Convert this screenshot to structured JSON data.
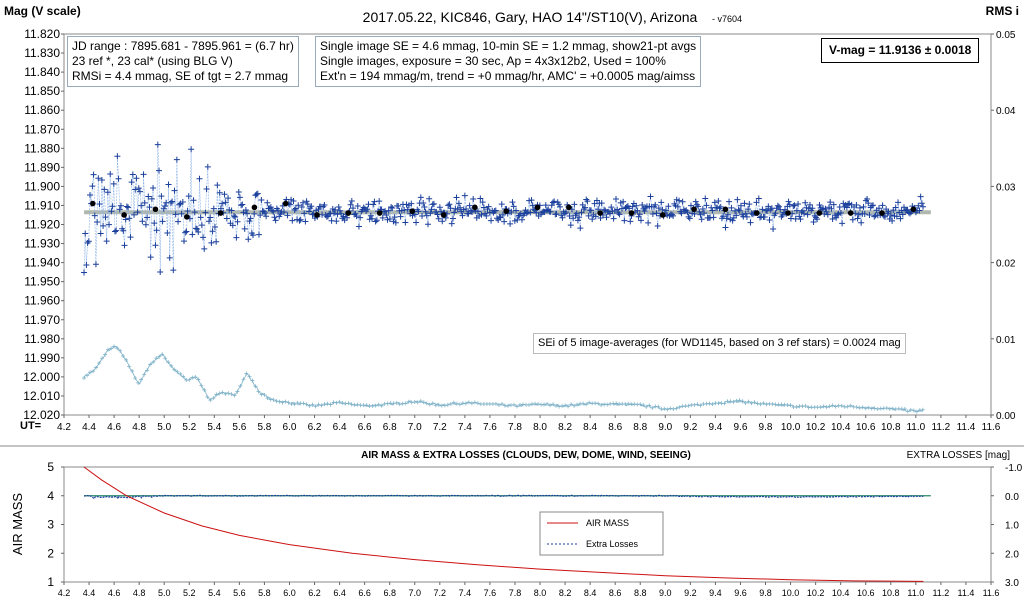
{
  "chart_data": [
    {
      "type": "scatter",
      "title": "2017.05.22,  KIC846,  Gary,  HAO 14\"/ST10(V),  Arizona",
      "version": "- v7604",
      "ylabel": "Mag (V scale)",
      "y2label": "RMS i",
      "xlabel": "UT=",
      "xlim": [
        4.2,
        11.6
      ],
      "ylim": [
        11.82,
        12.02
      ],
      "y_inverted": true,
      "y2lim": [
        0.0,
        0.05
      ],
      "x_ticks": [
        "4.2",
        "4.4",
        "4.6",
        "4.8",
        "5.0",
        "5.2",
        "5.4",
        "5.6",
        "5.8",
        "6.0",
        "6.2",
        "6.4",
        "6.6",
        "6.8",
        "7.0",
        "7.2",
        "7.4",
        "7.6",
        "7.8",
        "8.0",
        "8.2",
        "8.4",
        "8.6",
        "8.8",
        "9.0",
        "9.2",
        "9.4",
        "9.6",
        "9.8",
        "10.0",
        "10.2",
        "10.4",
        "10.6",
        "10.8",
        "11.0",
        "11.2",
        "11.4",
        "11.6"
      ],
      "y_ticks": [
        "11.820",
        "11.830",
        "11.840",
        "11.850",
        "11.860",
        "11.870",
        "11.880",
        "11.890",
        "11.900",
        "11.910",
        "11.920",
        "11.930",
        "11.940",
        "11.950",
        "11.960",
        "11.970",
        "11.980",
        "11.990",
        "12.000",
        "12.010",
        "12.020"
      ],
      "y2_ticks": [
        "0.05",
        "0.04",
        "0.03",
        "0.02",
        "0.01",
        "0.00"
      ],
      "info_left": [
        "JD range : 7895.681 - 7895.961 = (6.7 hr)",
        "23 ref *, 23 cal* (using BLG V)",
        "RMSi = 4.4 mmag, SE of tgt = 2.7 mmag"
      ],
      "info_mid": [
        "Single image SE = 4.6 mmag, 10-min SE = 1.2 mmag, show21-pt avgs",
        "Single images, exposure = 30 sec, Ap = 4x3x12b2, Used = 100%",
        "Ext'n = 194 mmag/m, trend = +0 mmag/hr, AMC' = +0.0005 mag/aimss"
      ],
      "vmag_label": "V-mag = 11.9136 ± 0.0018",
      "se_note": "SEi of 5 image-averages (for WD1145, based on 3 ref stars) = 0.0024 mag",
      "vmag_mean": 11.9136,
      "series": [
        {
          "name": "single images",
          "color": "#1a3f9c",
          "x_start": 4.36,
          "x_end": 11.06,
          "y_mean": 11.913,
          "y_scatter_early": 0.02,
          "y_scatter_late": 0.006
        },
        {
          "name": "21-pt averages",
          "color": "#000000",
          "x": [
            4.43,
            4.68,
            4.93,
            5.18,
            5.45,
            5.72,
            5.97,
            6.22,
            6.47,
            6.72,
            6.98,
            7.23,
            7.48,
            7.73,
            7.98,
            8.23,
            8.48,
            8.73,
            8.98,
            9.23,
            9.48,
            9.73,
            9.98,
            10.23,
            10.48,
            10.73,
            10.98
          ],
          "y": [
            11.909,
            11.915,
            11.912,
            11.916,
            11.914,
            11.911,
            11.909,
            11.915,
            11.914,
            11.914,
            11.913,
            11.915,
            11.911,
            11.913,
            11.911,
            11.911,
            11.914,
            11.914,
            11.915,
            11.912,
            11.912,
            11.914,
            11.914,
            11.914,
            11.914,
            11.914,
            11.912
          ]
        },
        {
          "name": "RMS i",
          "axis": "right",
          "color": "#7fb2c8",
          "x": [
            4.36,
            4.45,
            4.55,
            4.62,
            4.7,
            4.8,
            4.88,
            4.98,
            5.08,
            5.18,
            5.26,
            5.36,
            5.46,
            5.56,
            5.66,
            5.76,
            5.86,
            6.0,
            6.2,
            6.4,
            6.6,
            6.8,
            7.0,
            7.2,
            7.4,
            7.6,
            7.8,
            8.0,
            8.2,
            8.4,
            8.6,
            8.8,
            9.0,
            9.2,
            9.4,
            9.6,
            9.8,
            10.0,
            10.2,
            10.4,
            10.6,
            10.8,
            11.0,
            11.06
          ],
          "y": [
            0.005,
            0.006,
            0.0085,
            0.009,
            0.007,
            0.004,
            0.0065,
            0.008,
            0.006,
            0.0045,
            0.005,
            0.002,
            0.003,
            0.0025,
            0.0055,
            0.003,
            0.002,
            0.0016,
            0.0012,
            0.0016,
            0.0012,
            0.0014,
            0.0018,
            0.0013,
            0.0016,
            0.0014,
            0.0012,
            0.0014,
            0.0012,
            0.0015,
            0.0014,
            0.0013,
            0.0008,
            0.0012,
            0.0016,
            0.0018,
            0.0014,
            0.0012,
            0.001,
            0.0012,
            0.001,
            0.0008,
            0.0005,
            0.0006
          ]
        }
      ]
    },
    {
      "type": "line",
      "title": "AIR MASS & EXTRA LOSSES (CLOUDS, DEW, DOME, WIND, SEEING)",
      "ylabel": "AIR MASS",
      "y2label": "EXTRA LOSSES [mag]",
      "xlim": [
        4.2,
        11.6
      ],
      "ylim": [
        1,
        5
      ],
      "y2lim": [
        -1.0,
        3.0
      ],
      "y2_inverted": true,
      "x_ticks": [
        "4.2",
        "4.4",
        "4.6",
        "4.8",
        "5.0",
        "5.2",
        "5.4",
        "5.6",
        "5.8",
        "6.0",
        "6.2",
        "6.4",
        "6.6",
        "6.8",
        "7.0",
        "7.2",
        "7.4",
        "7.6",
        "7.8",
        "8.0",
        "8.2",
        "8.4",
        "8.6",
        "8.8",
        "9.0",
        "9.2",
        "9.4",
        "9.6",
        "9.8",
        "10.0",
        "10.2",
        "10.4",
        "10.6",
        "10.8",
        "11.0",
        "11.2",
        "11.4",
        "11.6"
      ],
      "y_ticks": [
        "5",
        "4",
        "3",
        "2",
        "1"
      ],
      "y2_ticks": [
        "-1.0",
        "0.0",
        "1.0",
        "2.0",
        "3.0"
      ],
      "legend": [
        "AIR MASS",
        "Extra Losses"
      ],
      "series": [
        {
          "name": "AIR MASS",
          "color": "#cc1111",
          "x": [
            4.36,
            4.5,
            4.7,
            5.0,
            5.3,
            5.6,
            6.0,
            6.5,
            7.0,
            7.5,
            8.0,
            8.5,
            9.0,
            9.5,
            10.0,
            10.5,
            11.06
          ],
          "y": [
            5.0,
            4.55,
            4.0,
            3.4,
            2.95,
            2.62,
            2.3,
            2.0,
            1.78,
            1.6,
            1.45,
            1.33,
            1.22,
            1.14,
            1.08,
            1.04,
            1.02
          ]
        },
        {
          "name": "Extra Losses",
          "axis": "right",
          "color": "#1a3f9c",
          "x": [
            4.36,
            4.5,
            4.6,
            4.7,
            4.8,
            5.0,
            6.0,
            7.0,
            8.0,
            9.0,
            9.3,
            10.0,
            10.6,
            11.06
          ],
          "y": [
            0.0,
            0.05,
            0.03,
            0.06,
            0.02,
            0.0,
            0.0,
            0.0,
            0.0,
            0.0,
            0.03,
            0.04,
            0.03,
            0.02
          ]
        }
      ]
    }
  ]
}
